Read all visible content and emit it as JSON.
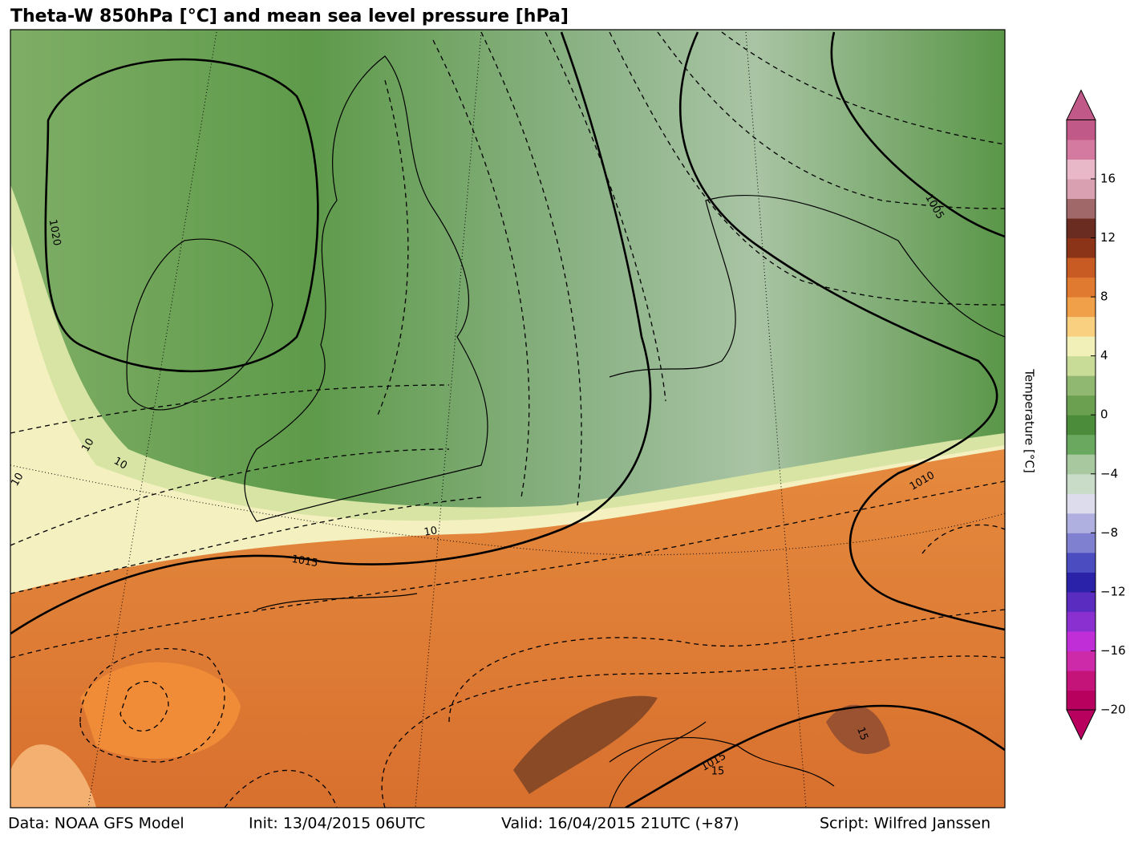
{
  "title": "Theta-W 850hPa [$^\\circ$C] and mean sea level pressure [hPa]",
  "map": {
    "contour_labels": [
      "1020",
      "1015",
      "1015",
      "1010",
      "1005",
      "10",
      "10",
      "10",
      "10",
      "15",
      "15"
    ]
  },
  "colorbar": {
    "label": "Temperature [$^\\circ$C]",
    "range": [
      -20,
      20
    ],
    "ticks": [
      {
        "value": -20,
        "label": "−20"
      },
      {
        "value": -16,
        "label": "−16"
      },
      {
        "value": -12,
        "label": "−12"
      },
      {
        "value": -8,
        "label": "−8"
      },
      {
        "value": -4,
        "label": "−4"
      },
      0,
      4,
      8,
      12,
      16
    ],
    "colors": [
      "#b8005e",
      "#c4147a",
      "#cc2aa8",
      "#c02ed8",
      "#8a30d0",
      "#5a2cc0",
      "#2a22a8",
      "#4a4cc0",
      "#8080d0",
      "#b0b0e0",
      "#dcdcec",
      "#c8dcc8",
      "#a8c8a0",
      "#6aa860",
      "#4a8c3a",
      "#6aa050",
      "#90b870",
      "#c8dc98",
      "#f0f0b8",
      "#f8d080",
      "#f0a048",
      "#e07a30",
      "#c85a24",
      "#8c3418",
      "#6a2c20",
      "#a06868",
      "#d8a0b0",
      "#e8b8c8",
      "#d47aa0",
      "#c05888"
    ]
  },
  "footer": {
    "data": "Data: NOAA GFS Model",
    "init": "Init: 13/04/2015 06UTC",
    "valid": "Valid: 16/04/2015 21UTC (+87)",
    "script": "Script: Wilfred Janssen"
  }
}
